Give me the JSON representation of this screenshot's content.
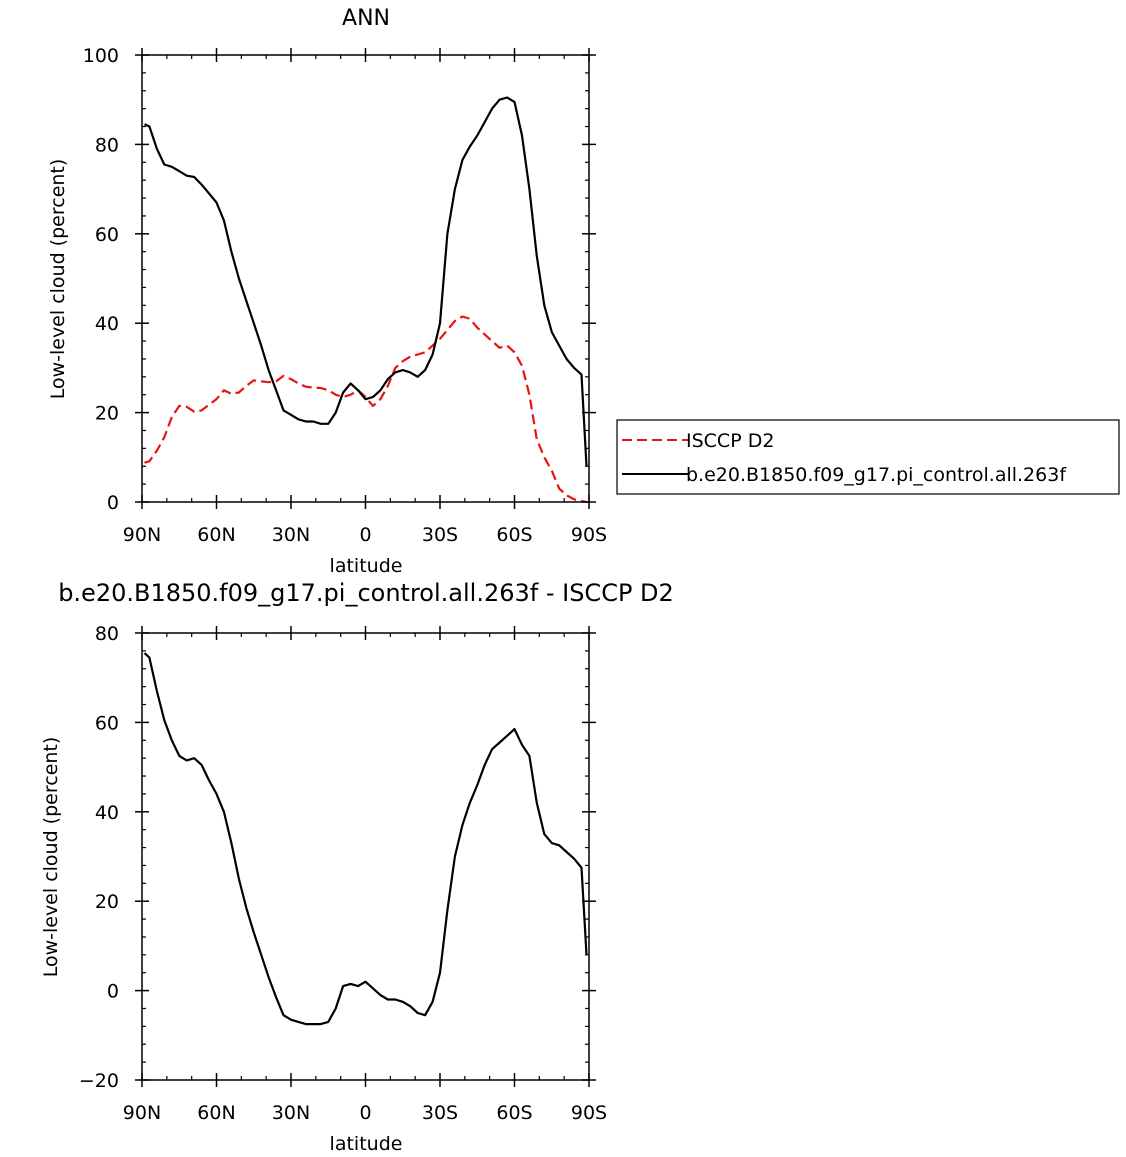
{
  "chart_data": [
    {
      "type": "line",
      "title": "ANN",
      "xlabel": "latitude",
      "ylabel": "Low-level cloud (percent)",
      "xlim": [
        90,
        -90
      ],
      "ylim": [
        0,
        100
      ],
      "xticks": [
        90,
        60,
        30,
        0,
        -30,
        -60,
        -90
      ],
      "xtick_labels": [
        "90N",
        "60N",
        "30N",
        "0",
        "30S",
        "60S",
        "90S"
      ],
      "yticks": [
        0,
        20,
        40,
        60,
        80,
        100
      ],
      "ytick_labels": [
        "0",
        "20",
        "40",
        "60",
        "80",
        "100"
      ],
      "grid": false,
      "legend_position": "right",
      "series": [
        {
          "name": "ISCCP D2",
          "color": "#e8140f",
          "dash": "dashed",
          "x": [
            89,
            87,
            84,
            81,
            78,
            75,
            72,
            69,
            66,
            63,
            60,
            57,
            54,
            51,
            48,
            45,
            42,
            39,
            36,
            33,
            30,
            27,
            24,
            21,
            18,
            15,
            12,
            9,
            6,
            3,
            0,
            -3,
            -6,
            -9,
            -12,
            -15,
            -18,
            -21,
            -24,
            -27,
            -30,
            -33,
            -36,
            -39,
            -42,
            -45,
            -48,
            -51,
            -54,
            -57,
            -60,
            -63,
            -66,
            -69,
            -72,
            -75,
            -78,
            -81,
            -84,
            -87,
            -89
          ],
          "y": [
            8.8,
            9.1,
            11.5,
            14.5,
            19.0,
            21.5,
            21.3,
            20.2,
            20.5,
            21.8,
            23.0,
            25.0,
            24.2,
            24.5,
            26.0,
            27.2,
            27.0,
            26.8,
            27.0,
            28.2,
            27.5,
            26.5,
            25.8,
            25.6,
            25.5,
            25.0,
            24.0,
            23.5,
            24.0,
            25.0,
            23.5,
            21.5,
            23.0,
            26.0,
            30.0,
            31.5,
            32.5,
            33.0,
            33.5,
            35.0,
            36.5,
            38.5,
            40.5,
            41.5,
            41.0,
            39.0,
            37.5,
            36.0,
            34.5,
            35.0,
            33.5,
            30.5,
            24.0,
            14.0,
            10.0,
            7.0,
            3.0,
            1.5,
            0.6,
            0.2,
            0.0
          ]
        },
        {
          "name": "b.e20.B1850.f09_g17.pi_control.all.263f",
          "color": "#000000",
          "dash": "solid",
          "x": [
            89,
            87,
            84,
            81,
            78,
            75,
            72,
            69,
            66,
            63,
            60,
            57,
            54,
            51,
            48,
            45,
            42,
            39,
            36,
            33,
            30,
            27,
            24,
            21,
            18,
            15,
            12,
            9,
            6,
            3,
            0,
            -3,
            -6,
            -9,
            -12,
            -15,
            -18,
            -21,
            -24,
            -27,
            -30,
            -33,
            -36,
            -39,
            -42,
            -45,
            -48,
            -51,
            -54,
            -57,
            -60,
            -63,
            -66,
            -69,
            -72,
            -75,
            -78,
            -81,
            -84,
            -87,
            -89
          ],
          "y": [
            84.5,
            84.0,
            79.0,
            75.5,
            75.0,
            74.0,
            73.0,
            72.7,
            71.0,
            69.0,
            67.0,
            63.0,
            56.0,
            50.0,
            45.0,
            40.0,
            35.0,
            29.5,
            25.0,
            20.5,
            19.5,
            18.5,
            18.0,
            18.0,
            17.5,
            17.5,
            20.0,
            24.5,
            26.5,
            25.0,
            23.0,
            23.5,
            25.0,
            27.5,
            29.0,
            29.5,
            29.0,
            28.0,
            29.5,
            33.0,
            40.0,
            60.0,
            70.0,
            76.5,
            79.5,
            82.0,
            85.0,
            88.0,
            90.0,
            90.5,
            89.5,
            82.0,
            70.0,
            55.0,
            44.0,
            38.0,
            35.0,
            32.0,
            30.0,
            28.5,
            8.0
          ]
        }
      ]
    },
    {
      "type": "line",
      "title": "b.e20.B1850.f09_g17.pi_control.all.263f - ISCCP D2",
      "xlabel": "latitude",
      "ylabel": "Low-level cloud (percent)",
      "xlim": [
        90,
        -90
      ],
      "ylim": [
        -20,
        80
      ],
      "xticks": [
        90,
        60,
        30,
        0,
        -30,
        -60,
        -90
      ],
      "xtick_labels": [
        "90N",
        "60N",
        "30N",
        "0",
        "30S",
        "60S",
        "90S"
      ],
      "yticks": [
        -20,
        0,
        20,
        40,
        60,
        80
      ],
      "ytick_labels": [
        "−20",
        "0",
        "20",
        "40",
        "60",
        "80"
      ],
      "grid": false,
      "series": [
        {
          "color": "#000000",
          "dash": "solid",
          "x": [
            89,
            87,
            84,
            81,
            78,
            75,
            72,
            69,
            66,
            63,
            60,
            57,
            54,
            51,
            48,
            45,
            42,
            39,
            36,
            33,
            30,
            27,
            24,
            21,
            18,
            15,
            12,
            9,
            6,
            3,
            0,
            -3,
            -6,
            -9,
            -12,
            -15,
            -18,
            -21,
            -24,
            -27,
            -30,
            -33,
            -36,
            -39,
            -42,
            -45,
            -48,
            -51,
            -54,
            -57,
            -60,
            -63,
            -66,
            -69,
            -72,
            -75,
            -78,
            -81,
            -84,
            -87,
            -89
          ],
          "y": [
            75.5,
            74.5,
            67.0,
            60.5,
            56.0,
            52.5,
            51.5,
            52.0,
            50.5,
            47.0,
            44.0,
            40.0,
            33.0,
            25.0,
            18.5,
            13.0,
            8.0,
            3.0,
            -1.5,
            -5.5,
            -6.5,
            -7.0,
            -7.5,
            -7.5,
            -7.5,
            -7.0,
            -4.0,
            1.0,
            1.5,
            1.0,
            2.0,
            0.5,
            -1.0,
            -2.0,
            -2.0,
            -2.5,
            -3.5,
            -5.0,
            -5.5,
            -2.5,
            4.0,
            18.0,
            30.0,
            37.0,
            42.0,
            46.0,
            50.5,
            54.0,
            55.5,
            57.0,
            58.5,
            55.0,
            52.5,
            42.0,
            35.0,
            33.0,
            32.5,
            31.0,
            29.5,
            27.5,
            8.0
          ]
        }
      ]
    }
  ]
}
